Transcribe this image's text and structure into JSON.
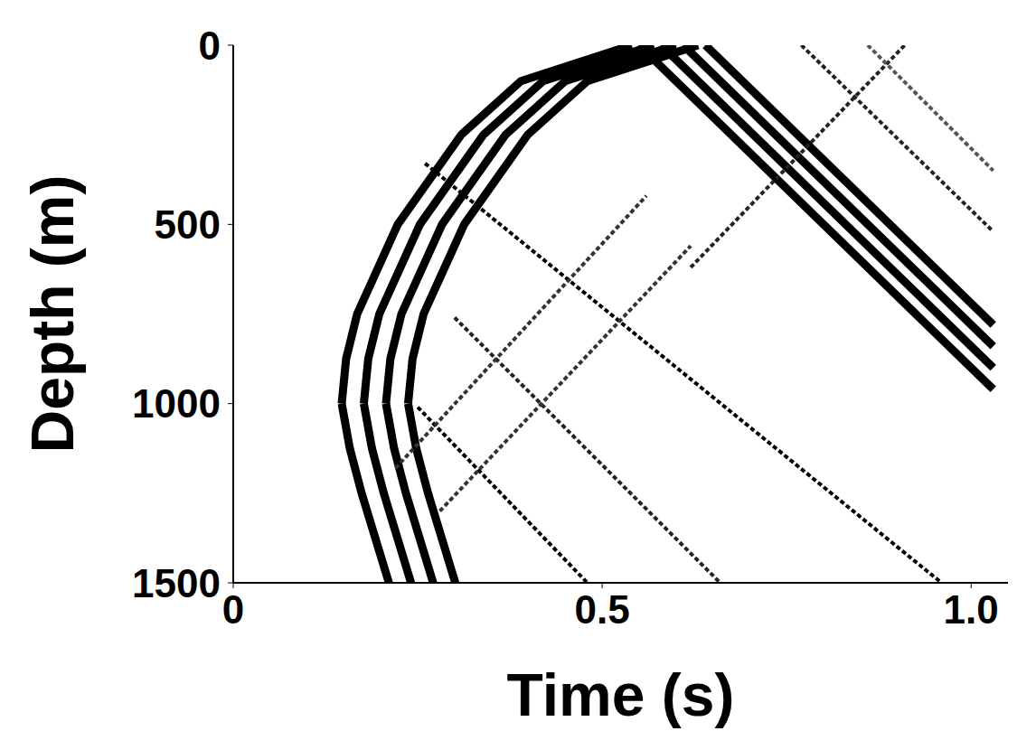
{
  "chart_data": {
    "type": "line",
    "x_label": "Time (s)",
    "y_label": "Depth (m)",
    "xlim": [
      0,
      1.05
    ],
    "xticks": [
      0,
      0.5,
      {
        "value": 1,
        "label": "1.0"
      }
    ],
    "ylim": [
      0,
      1500
    ],
    "yticks": [
      0,
      500,
      1000,
      1500
    ],
    "y_reversed": true,
    "grid": false,
    "series": [
      {
        "color": "#000000",
        "line_style": "solid",
        "marker": "none",
        "x": [
          0.147,
          0.158,
          0.174,
          0.211
        ],
        "values": [
          1000,
          1125,
          1250,
          1500
        ]
      },
      {
        "color": "#000000",
        "line_style": "solid",
        "marker": "none",
        "x": [
          0.177,
          0.188,
          0.204,
          0.241
        ],
        "values": [
          1000,
          1125,
          1250,
          1500
        ]
      },
      {
        "color": "#000000",
        "line_style": "solid",
        "marker": "none",
        "x": [
          0.207,
          0.218,
          0.234,
          0.271
        ],
        "values": [
          1000,
          1125,
          1250,
          1500
        ]
      },
      {
        "color": "#000000",
        "line_style": "solid",
        "marker": "none",
        "x": [
          0.237,
          0.248,
          0.264,
          0.301
        ],
        "values": [
          1000,
          1125,
          1250,
          1500
        ]
      },
      {
        "color": "#000000",
        "line_style": "solid",
        "marker": "none",
        "x": [
          0.147,
          0.153,
          0.168,
          0.223,
          0.309,
          0.39,
          0.54
        ],
        "values": [
          1000,
          875,
          750,
          500,
          250,
          100,
          0
        ]
      },
      {
        "color": "#000000",
        "line_style": "solid",
        "marker": "none",
        "x": [
          0.177,
          0.183,
          0.198,
          0.253,
          0.339,
          0.42,
          0.57
        ],
        "values": [
          1000,
          875,
          750,
          500,
          250,
          100,
          0
        ]
      },
      {
        "color": "#000000",
        "line_style": "solid",
        "marker": "none",
        "x": [
          0.207,
          0.213,
          0.228,
          0.283,
          0.369,
          0.45,
          0.6
        ],
        "values": [
          1000,
          875,
          750,
          500,
          250,
          100,
          0
        ]
      },
      {
        "color": "#000000",
        "line_style": "solid",
        "marker": "none",
        "x": [
          0.237,
          0.243,
          0.258,
          0.313,
          0.399,
          0.48,
          0.63
        ],
        "values": [
          1000,
          875,
          750,
          500,
          250,
          100,
          0
        ]
      },
      {
        "color": "#000000",
        "line_style": "solid",
        "marker": "none",
        "x": [
          0.55,
          1.03
        ],
        "values": [
          0,
          960
        ]
      },
      {
        "color": "#000000",
        "line_style": "solid",
        "marker": "none",
        "x": [
          0.58,
          1.03
        ],
        "values": [
          0,
          900
        ]
      },
      {
        "color": "#000000",
        "line_style": "solid",
        "marker": "none",
        "x": [
          0.61,
          1.03
        ],
        "values": [
          0,
          840
        ]
      },
      {
        "color": "#000000",
        "line_style": "solid",
        "marker": "none",
        "x": [
          0.64,
          1.03
        ],
        "values": [
          0,
          780
        ]
      },
      {
        "color": "#000000",
        "line_style": "dotted",
        "marker": "none",
        "x": [
          0.25,
          0.48
        ],
        "values": [
          1010,
          1500
        ]
      },
      {
        "color": "#222222",
        "line_style": "dotted",
        "marker": "none",
        "x": [
          0.3,
          0.66
        ],
        "values": [
          760,
          1500
        ]
      },
      {
        "color": "#000000",
        "line_style": "dotted",
        "marker": "none",
        "x": [
          0.26,
          0.96
        ],
        "values": [
          330,
          1500
        ]
      },
      {
        "color": "#333333",
        "line_style": "dotted",
        "marker": "none",
        "x": [
          0.22,
          0.56
        ],
        "values": [
          1180,
          420
        ]
      },
      {
        "color": "#333333",
        "line_style": "dotted",
        "marker": "none",
        "x": [
          0.28,
          0.62
        ],
        "values": [
          1300,
          560
        ]
      },
      {
        "color": "#222222",
        "line_style": "dotted",
        "marker": "none",
        "x": [
          0.62,
          0.91
        ],
        "values": [
          620,
          0
        ]
      },
      {
        "color": "#222222",
        "line_style": "dotted",
        "marker": "none",
        "x": [
          0.77,
          1.03
        ],
        "values": [
          0,
          520
        ]
      },
      {
        "color": "#555555",
        "line_style": "dotted",
        "marker": "none",
        "x": [
          0.86,
          1.03
        ],
        "values": [
          0,
          350
        ]
      }
    ]
  }
}
